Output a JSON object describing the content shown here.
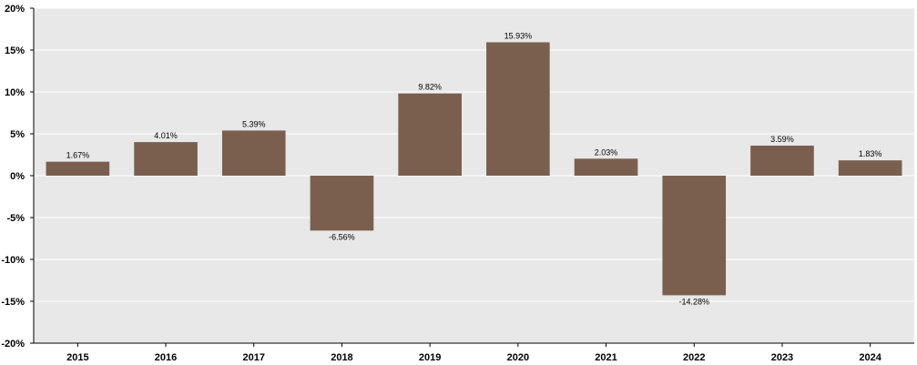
{
  "chart_data": {
    "type": "bar",
    "categories": [
      "2015",
      "2016",
      "2017",
      "2018",
      "2019",
      "2020",
      "2021",
      "2022",
      "2023",
      "2024"
    ],
    "values": [
      1.67,
      4.01,
      5.39,
      -6.56,
      9.82,
      15.93,
      2.03,
      -14.28,
      3.59,
      1.83
    ],
    "data_labels": [
      "1.67%",
      "4.01%",
      "5.39%",
      "-6.56%",
      "9.82%",
      "15.93%",
      "2.03%",
      "-14.28%",
      "3.59%",
      "1.83%"
    ],
    "y_ticks": [
      20,
      15,
      10,
      5,
      0,
      -5,
      -10,
      -15,
      -20
    ],
    "y_tick_labels": [
      "20%",
      "15%",
      "10%",
      "5%",
      "0%",
      "-5%",
      "-10%",
      "-15%",
      "-20%"
    ],
    "ylim": [
      -20,
      20
    ],
    "grid": true,
    "legend": "none",
    "colors": {
      "bar": "#7a5f4f",
      "plot_background": "#e8e8e8",
      "gridline": "#ffffff"
    }
  }
}
